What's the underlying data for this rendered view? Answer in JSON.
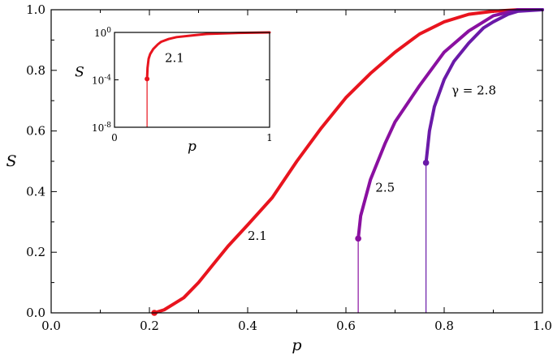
{
  "chart_data": [
    {
      "type": "line",
      "xlabel": "p",
      "ylabel": "S",
      "xlim": [
        0.0,
        1.0
      ],
      "ylim": [
        0.0,
        1.0
      ],
      "xticks": [
        "0.0",
        "0.2",
        "0.4",
        "0.6",
        "0.8",
        "1.0"
      ],
      "yticks": [
        "0.0",
        "0.2",
        "0.4",
        "0.6",
        "0.8",
        "1.0"
      ],
      "grid": false,
      "legend": "none",
      "series": [
        {
          "name": "2.1",
          "color": "#e8141e",
          "x": [
            0.21,
            0.23,
            0.25,
            0.27,
            0.3,
            0.33,
            0.36,
            0.4,
            0.45,
            0.5,
            0.55,
            0.6,
            0.65,
            0.7,
            0.75,
            0.8,
            0.85,
            0.9,
            0.95,
            1.0
          ],
          "y": [
            0.0,
            0.01,
            0.03,
            0.05,
            0.1,
            0.16,
            0.22,
            0.29,
            0.38,
            0.5,
            0.61,
            0.71,
            0.79,
            0.86,
            0.92,
            0.96,
            0.985,
            0.995,
            1.0,
            1.0
          ],
          "threshold": {
            "x": 0.21,
            "y": 0.0
          }
        },
        {
          "name": "2.5",
          "color": "#8a10a0",
          "x": [
            0.625,
            0.63,
            0.65,
            0.68,
            0.7,
            0.75,
            0.8,
            0.85,
            0.9,
            0.95,
            1.0
          ],
          "y": [
            0.245,
            0.32,
            0.44,
            0.56,
            0.63,
            0.75,
            0.86,
            0.93,
            0.98,
            1.0,
            1.0
          ],
          "threshold": {
            "x": 0.625,
            "y": 0.245
          }
        },
        {
          "name": "γ = 2.8",
          "color": "#6a1aa8",
          "x": [
            0.763,
            0.77,
            0.78,
            0.8,
            0.82,
            0.85,
            0.88,
            0.9,
            0.93,
            0.95,
            1.0
          ],
          "y": [
            0.495,
            0.6,
            0.68,
            0.77,
            0.83,
            0.89,
            0.94,
            0.96,
            0.985,
            0.995,
            1.0
          ],
          "threshold": {
            "x": 0.763,
            "y": 0.495
          }
        }
      ],
      "annotations": [
        {
          "text": "2.1",
          "x": 0.4,
          "y": 0.24
        },
        {
          "text": "2.5",
          "x": 0.66,
          "y": 0.4
        },
        {
          "text": "γ = 2.8",
          "x": 0.815,
          "y": 0.72
        }
      ]
    },
    {
      "type": "line",
      "xlabel": "p",
      "ylabel": "S",
      "xlim": [
        0,
        1
      ],
      "yscale": "log",
      "ylim": [
        1e-08,
        1
      ],
      "xticks": [
        "0",
        "1"
      ],
      "yticks": [
        "10-8",
        "10-4",
        "100"
      ],
      "series": [
        {
          "name": "2.1",
          "color": "#e8141e",
          "x": [
            0.21,
            0.213,
            0.22,
            0.23,
            0.25,
            0.28,
            0.3,
            0.35,
            0.4,
            0.5,
            0.6,
            0.8,
            1.0
          ],
          "y": [
            0.00012,
            0.001,
            0.006,
            0.015,
            0.04,
            0.1,
            0.16,
            0.28,
            0.4,
            0.55,
            0.75,
            0.9,
            1.0
          ],
          "threshold": {
            "x": 0.21,
            "y": 0.00012
          }
        }
      ],
      "annotations": [
        {
          "text": "2.1",
          "x": 0.45,
          "y": 0.01
        }
      ]
    }
  ]
}
